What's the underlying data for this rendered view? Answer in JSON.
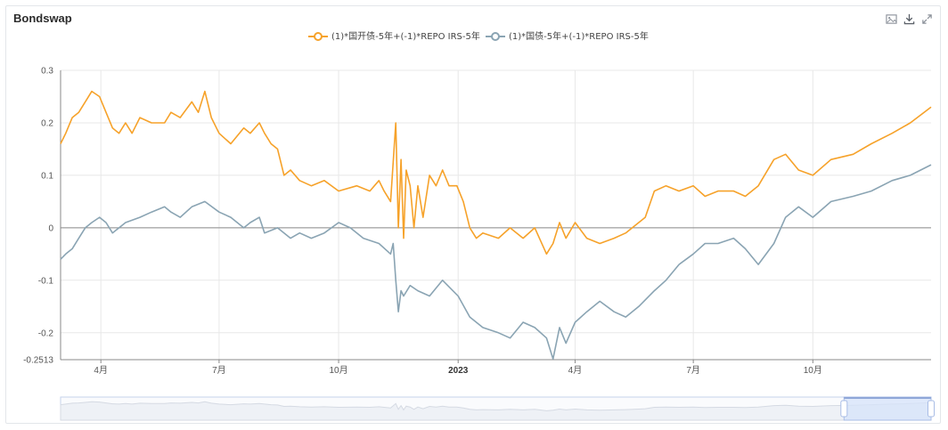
{
  "window": {
    "title": "Bondswap"
  },
  "toolbox": [
    {
      "icon": "image-save-icon",
      "label": ""
    },
    {
      "icon": "download-icon",
      "label": ""
    },
    {
      "icon": "expand-icon",
      "label": ""
    }
  ],
  "colors": {
    "series1": "#f6a22a",
    "series2": "#8aa4b3",
    "grid": "#e8e8e8",
    "axis": "#888888",
    "zoom_fill": "#d6e3fa",
    "zoom_border": "#c6d3eb"
  },
  "chart_data": {
    "type": "line",
    "title": "Bondswap",
    "xlabel": "",
    "ylabel": "",
    "ylim": [
      -0.2513,
      0.3
    ],
    "yticks": [
      {
        "value": 0.3,
        "label": "0.3"
      },
      {
        "value": 0.2,
        "label": "0.2"
      },
      {
        "value": 0.1,
        "label": "0.1"
      },
      {
        "value": 0,
        "label": "0"
      },
      {
        "value": -0.1,
        "label": "-0.1"
      },
      {
        "value": -0.2,
        "label": "-0.2"
      },
      {
        "value": -0.2513,
        "label": "-0.2513"
      }
    ],
    "xrange": [
      "2022-03-01",
      "2023-12-31"
    ],
    "xticks": [
      {
        "date": "2022-04-01",
        "label": "4月",
        "bold": false
      },
      {
        "date": "2022-07-01",
        "label": "7月",
        "bold": false
      },
      {
        "date": "2022-10-01",
        "label": "10月",
        "bold": false
      },
      {
        "date": "2023-01-01",
        "label": "2023",
        "bold": true
      },
      {
        "date": "2023-04-01",
        "label": "4月",
        "bold": false
      },
      {
        "date": "2023-07-01",
        "label": "7月",
        "bold": false
      },
      {
        "date": "2023-10-01",
        "label": "10月",
        "bold": false
      }
    ],
    "grid": true,
    "legend_position": "top-center",
    "series": [
      {
        "name": "(1)*国开债-5年+(-1)*REPO IRS-5年",
        "color": "#f6a22a",
        "points": [
          [
            "2022-03-01",
            0.16
          ],
          [
            "2022-03-05",
            0.18
          ],
          [
            "2022-03-10",
            0.21
          ],
          [
            "2022-03-15",
            0.22
          ],
          [
            "2022-03-20",
            0.24
          ],
          [
            "2022-03-25",
            0.26
          ],
          [
            "2022-03-31",
            0.25
          ],
          [
            "2022-04-05",
            0.22
          ],
          [
            "2022-04-10",
            0.19
          ],
          [
            "2022-04-15",
            0.18
          ],
          [
            "2022-04-20",
            0.2
          ],
          [
            "2022-04-25",
            0.18
          ],
          [
            "2022-05-01",
            0.21
          ],
          [
            "2022-05-10",
            0.2
          ],
          [
            "2022-05-20",
            0.2
          ],
          [
            "2022-05-25",
            0.22
          ],
          [
            "2022-06-01",
            0.21
          ],
          [
            "2022-06-10",
            0.24
          ],
          [
            "2022-06-15",
            0.22
          ],
          [
            "2022-06-20",
            0.26
          ],
          [
            "2022-06-25",
            0.21
          ],
          [
            "2022-07-01",
            0.18
          ],
          [
            "2022-07-10",
            0.16
          ],
          [
            "2022-07-20",
            0.19
          ],
          [
            "2022-07-25",
            0.18
          ],
          [
            "2022-08-01",
            0.2
          ],
          [
            "2022-08-05",
            0.18
          ],
          [
            "2022-08-10",
            0.16
          ],
          [
            "2022-08-15",
            0.15
          ],
          [
            "2022-08-20",
            0.1
          ],
          [
            "2022-08-25",
            0.11
          ],
          [
            "2022-09-01",
            0.09
          ],
          [
            "2022-09-10",
            0.08
          ],
          [
            "2022-09-20",
            0.09
          ],
          [
            "2022-10-01",
            0.07
          ],
          [
            "2022-10-15",
            0.08
          ],
          [
            "2022-10-25",
            0.07
          ],
          [
            "2022-11-01",
            0.09
          ],
          [
            "2022-11-05",
            0.07
          ],
          [
            "2022-11-10",
            0.05
          ],
          [
            "2022-11-14",
            0.2
          ],
          [
            "2022-11-16",
            0.0
          ],
          [
            "2022-11-18",
            0.13
          ],
          [
            "2022-11-20",
            -0.02
          ],
          [
            "2022-11-22",
            0.11
          ],
          [
            "2022-11-25",
            0.08
          ],
          [
            "2022-11-28",
            0.0
          ],
          [
            "2022-12-01",
            0.08
          ],
          [
            "2022-12-05",
            0.02
          ],
          [
            "2022-12-10",
            0.1
          ],
          [
            "2022-12-15",
            0.08
          ],
          [
            "2022-12-20",
            0.11
          ],
          [
            "2022-12-25",
            0.08
          ],
          [
            "2022-12-31",
            0.08
          ],
          [
            "2023-01-05",
            0.05
          ],
          [
            "2023-01-10",
            0.0
          ],
          [
            "2023-01-15",
            -0.02
          ],
          [
            "2023-01-20",
            -0.01
          ],
          [
            "2023-02-01",
            -0.02
          ],
          [
            "2023-02-10",
            0.0
          ],
          [
            "2023-02-20",
            -0.02
          ],
          [
            "2023-03-01",
            0.0
          ],
          [
            "2023-03-10",
            -0.05
          ],
          [
            "2023-03-15",
            -0.03
          ],
          [
            "2023-03-20",
            0.01
          ],
          [
            "2023-03-25",
            -0.02
          ],
          [
            "2023-04-01",
            0.01
          ],
          [
            "2023-04-10",
            -0.02
          ],
          [
            "2023-04-20",
            -0.03
          ],
          [
            "2023-05-01",
            -0.02
          ],
          [
            "2023-05-10",
            -0.01
          ],
          [
            "2023-05-20",
            0.01
          ],
          [
            "2023-05-25",
            0.02
          ],
          [
            "2023-06-01",
            0.07
          ],
          [
            "2023-06-10",
            0.08
          ],
          [
            "2023-06-20",
            0.07
          ],
          [
            "2023-07-01",
            0.08
          ],
          [
            "2023-07-10",
            0.06
          ],
          [
            "2023-07-20",
            0.07
          ],
          [
            "2023-08-01",
            0.07
          ],
          [
            "2023-08-10",
            0.06
          ],
          [
            "2023-08-20",
            0.08
          ],
          [
            "2023-09-01",
            0.13
          ],
          [
            "2023-09-10",
            0.14
          ],
          [
            "2023-09-20",
            0.11
          ],
          [
            "2023-10-01",
            0.1
          ],
          [
            "2023-10-15",
            0.13
          ],
          [
            "2023-11-01",
            0.14
          ],
          [
            "2023-11-15",
            0.16
          ],
          [
            "2023-12-01",
            0.18
          ],
          [
            "2023-12-15",
            0.2
          ],
          [
            "2023-12-31",
            0.23
          ]
        ]
      },
      {
        "name": "(1)*国债-5年+(-1)*REPO IRS-5年",
        "color": "#8aa4b3",
        "points": [
          [
            "2022-03-01",
            -0.06
          ],
          [
            "2022-03-05",
            -0.05
          ],
          [
            "2022-03-10",
            -0.04
          ],
          [
            "2022-03-15",
            -0.02
          ],
          [
            "2022-03-20",
            0.0
          ],
          [
            "2022-03-25",
            0.01
          ],
          [
            "2022-03-31",
            0.02
          ],
          [
            "2022-04-05",
            0.01
          ],
          [
            "2022-04-10",
            -0.01
          ],
          [
            "2022-04-15",
            0.0
          ],
          [
            "2022-04-20",
            0.01
          ],
          [
            "2022-05-01",
            0.02
          ],
          [
            "2022-05-10",
            0.03
          ],
          [
            "2022-05-20",
            0.04
          ],
          [
            "2022-05-25",
            0.03
          ],
          [
            "2022-06-01",
            0.02
          ],
          [
            "2022-06-10",
            0.04
          ],
          [
            "2022-06-20",
            0.05
          ],
          [
            "2022-07-01",
            0.03
          ],
          [
            "2022-07-10",
            0.02
          ],
          [
            "2022-07-20",
            0.0
          ],
          [
            "2022-07-25",
            0.01
          ],
          [
            "2022-08-01",
            0.02
          ],
          [
            "2022-08-05",
            -0.01
          ],
          [
            "2022-08-15",
            0.0
          ],
          [
            "2022-08-25",
            -0.02
          ],
          [
            "2022-09-01",
            -0.01
          ],
          [
            "2022-09-10",
            -0.02
          ],
          [
            "2022-09-20",
            -0.01
          ],
          [
            "2022-10-01",
            0.01
          ],
          [
            "2022-10-10",
            0.0
          ],
          [
            "2022-10-20",
            -0.02
          ],
          [
            "2022-11-01",
            -0.03
          ],
          [
            "2022-11-10",
            -0.05
          ],
          [
            "2022-11-12",
            -0.03
          ],
          [
            "2022-11-14",
            -0.1
          ],
          [
            "2022-11-16",
            -0.16
          ],
          [
            "2022-11-18",
            -0.12
          ],
          [
            "2022-11-20",
            -0.13
          ],
          [
            "2022-11-25",
            -0.11
          ],
          [
            "2022-12-01",
            -0.12
          ],
          [
            "2022-12-10",
            -0.13
          ],
          [
            "2022-12-20",
            -0.1
          ],
          [
            "2023-01-01",
            -0.13
          ],
          [
            "2023-01-10",
            -0.17
          ],
          [
            "2023-01-20",
            -0.19
          ],
          [
            "2023-02-01",
            -0.2
          ],
          [
            "2023-02-10",
            -0.21
          ],
          [
            "2023-02-20",
            -0.18
          ],
          [
            "2023-03-01",
            -0.19
          ],
          [
            "2023-03-10",
            -0.21
          ],
          [
            "2023-03-15",
            -0.25
          ],
          [
            "2023-03-20",
            -0.19
          ],
          [
            "2023-03-25",
            -0.22
          ],
          [
            "2023-04-01",
            -0.18
          ],
          [
            "2023-04-10",
            -0.16
          ],
          [
            "2023-04-20",
            -0.14
          ],
          [
            "2023-05-01",
            -0.16
          ],
          [
            "2023-05-10",
            -0.17
          ],
          [
            "2023-05-20",
            -0.15
          ],
          [
            "2023-06-01",
            -0.12
          ],
          [
            "2023-06-10",
            -0.1
          ],
          [
            "2023-06-20",
            -0.07
          ],
          [
            "2023-07-01",
            -0.05
          ],
          [
            "2023-07-10",
            -0.03
          ],
          [
            "2023-07-20",
            -0.03
          ],
          [
            "2023-08-01",
            -0.02
          ],
          [
            "2023-08-10",
            -0.04
          ],
          [
            "2023-08-20",
            -0.07
          ],
          [
            "2023-09-01",
            -0.03
          ],
          [
            "2023-09-10",
            0.02
          ],
          [
            "2023-09-20",
            0.04
          ],
          [
            "2023-10-01",
            0.02
          ],
          [
            "2023-10-15",
            0.05
          ],
          [
            "2023-11-01",
            0.06
          ],
          [
            "2023-11-15",
            0.07
          ],
          [
            "2023-12-01",
            0.09
          ],
          [
            "2023-12-15",
            0.1
          ],
          [
            "2023-12-31",
            0.12
          ]
        ]
      }
    ]
  },
  "datazoom": {
    "window_start_fraction": 0.9,
    "window_end_fraction": 1.0
  }
}
